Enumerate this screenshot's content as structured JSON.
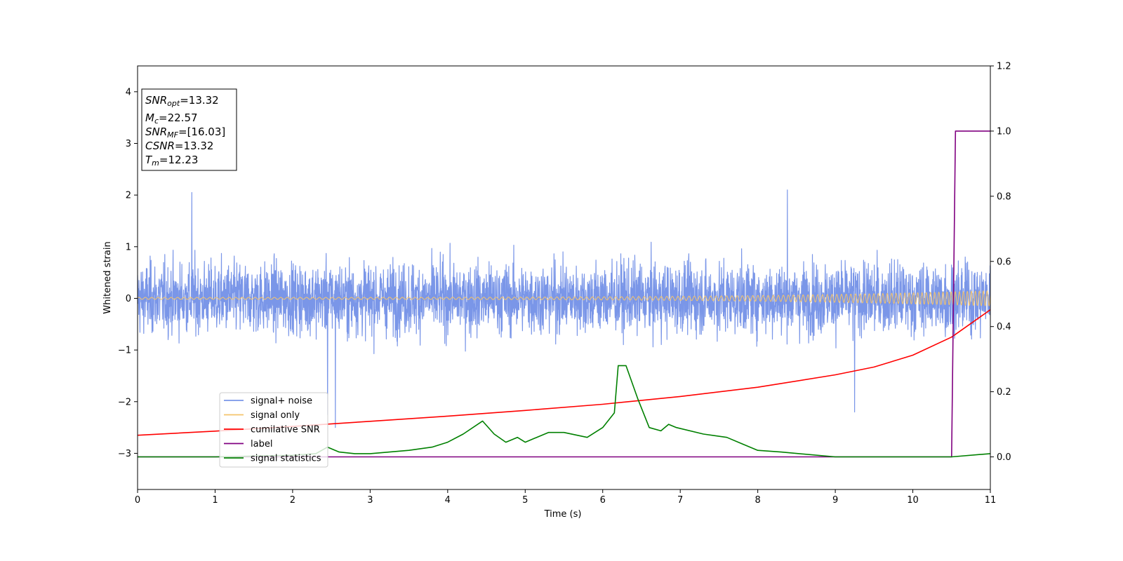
{
  "chart_data": {
    "type": "line",
    "title": "",
    "xlabel": "Time (s)",
    "ylabel": "Whitened strain",
    "y2label": "",
    "xlim": [
      0,
      11
    ],
    "ylim": [
      -3.7,
      4.5
    ],
    "y2lim": [
      -0.1,
      1.2
    ],
    "x_ticks": [
      "0",
      "1",
      "2",
      "3",
      "4",
      "5",
      "6",
      "7",
      "8",
      "9",
      "10",
      "11"
    ],
    "y_ticks": [
      "4",
      "3",
      "2",
      "1",
      "0",
      "−1",
      "−2",
      "−3"
    ],
    "y2_ticks": [
      "0.0",
      "0.2",
      "0.4",
      "0.6",
      "0.8",
      "1.0",
      "1.2"
    ],
    "grid": false,
    "legend_position": "lower-left",
    "info_box": {
      "snr_opt_label": "SNR",
      "snr_opt_sub": "opt",
      "snr_opt_value": "=13.32",
      "mc_label": "M",
      "mc_sub": "c",
      "mc_value": "=22.57",
      "snr_mf_label": "SNR",
      "snr_mf_sub": "MF",
      "snr_mf_value": "=[16.03]",
      "csnr_label": "CSNR",
      "csnr_value": "=13.32",
      "tm_label": "T",
      "tm_sub": "m",
      "tm_value": "=12.23"
    },
    "series": [
      {
        "name": "signal+ noise",
        "color": "#7a96e8",
        "axis": "left",
        "kind": "noise band",
        "typical_range": [
          -1.0,
          1.0
        ],
        "peaks": [
          [
            0.7,
            2.05
          ],
          [
            2.45,
            -2.25
          ],
          [
            2.55,
            -2.5
          ],
          [
            8.38,
            2.1
          ],
          [
            9.25,
            -2.2
          ]
        ]
      },
      {
        "name": "signal only",
        "color": "#f5c46b",
        "axis": "left",
        "kind": "chirp",
        "amplitude_start": 0.02,
        "amplitude_end": 0.15
      },
      {
        "name": "cumilative SNR",
        "color": "#ff0000",
        "axis": "left",
        "x": [
          0,
          1,
          2,
          3,
          4,
          5,
          6,
          7,
          8,
          9,
          9.5,
          10,
          10.5,
          11
        ],
        "y": [
          -2.65,
          -2.57,
          -2.48,
          -2.38,
          -2.28,
          -2.17,
          -2.05,
          -1.9,
          -1.72,
          -1.48,
          -1.33,
          -1.1,
          -0.75,
          -0.22
        ]
      },
      {
        "name": "label",
        "color": "#800080",
        "axis": "right",
        "x": [
          0,
          10.5,
          10.55,
          11
        ],
        "y": [
          0.0,
          0.0,
          1.0,
          1.0
        ]
      },
      {
        "name": "signal statistics",
        "color": "#008000",
        "axis": "right",
        "x": [
          0,
          1,
          2,
          2.3,
          2.45,
          2.6,
          2.8,
          3.0,
          3.5,
          3.8,
          4.0,
          4.2,
          4.45,
          4.6,
          4.75,
          4.9,
          5.0,
          5.3,
          5.5,
          5.8,
          6.0,
          6.15,
          6.2,
          6.3,
          6.45,
          6.6,
          6.75,
          6.85,
          6.95,
          7.3,
          7.6,
          7.8,
          8.0,
          8.3,
          9.0,
          10.0,
          10.5,
          11.0
        ],
        "y": [
          0.0,
          0.0,
          0.005,
          0.01,
          0.03,
          0.015,
          0.01,
          0.01,
          0.02,
          0.03,
          0.045,
          0.07,
          0.11,
          0.07,
          0.045,
          0.06,
          0.045,
          0.075,
          0.075,
          0.06,
          0.09,
          0.135,
          0.28,
          0.28,
          0.18,
          0.09,
          0.08,
          0.1,
          0.09,
          0.07,
          0.06,
          0.04,
          0.02,
          0.015,
          0.0,
          0.0,
          0.0,
          0.01
        ]
      }
    ]
  }
}
